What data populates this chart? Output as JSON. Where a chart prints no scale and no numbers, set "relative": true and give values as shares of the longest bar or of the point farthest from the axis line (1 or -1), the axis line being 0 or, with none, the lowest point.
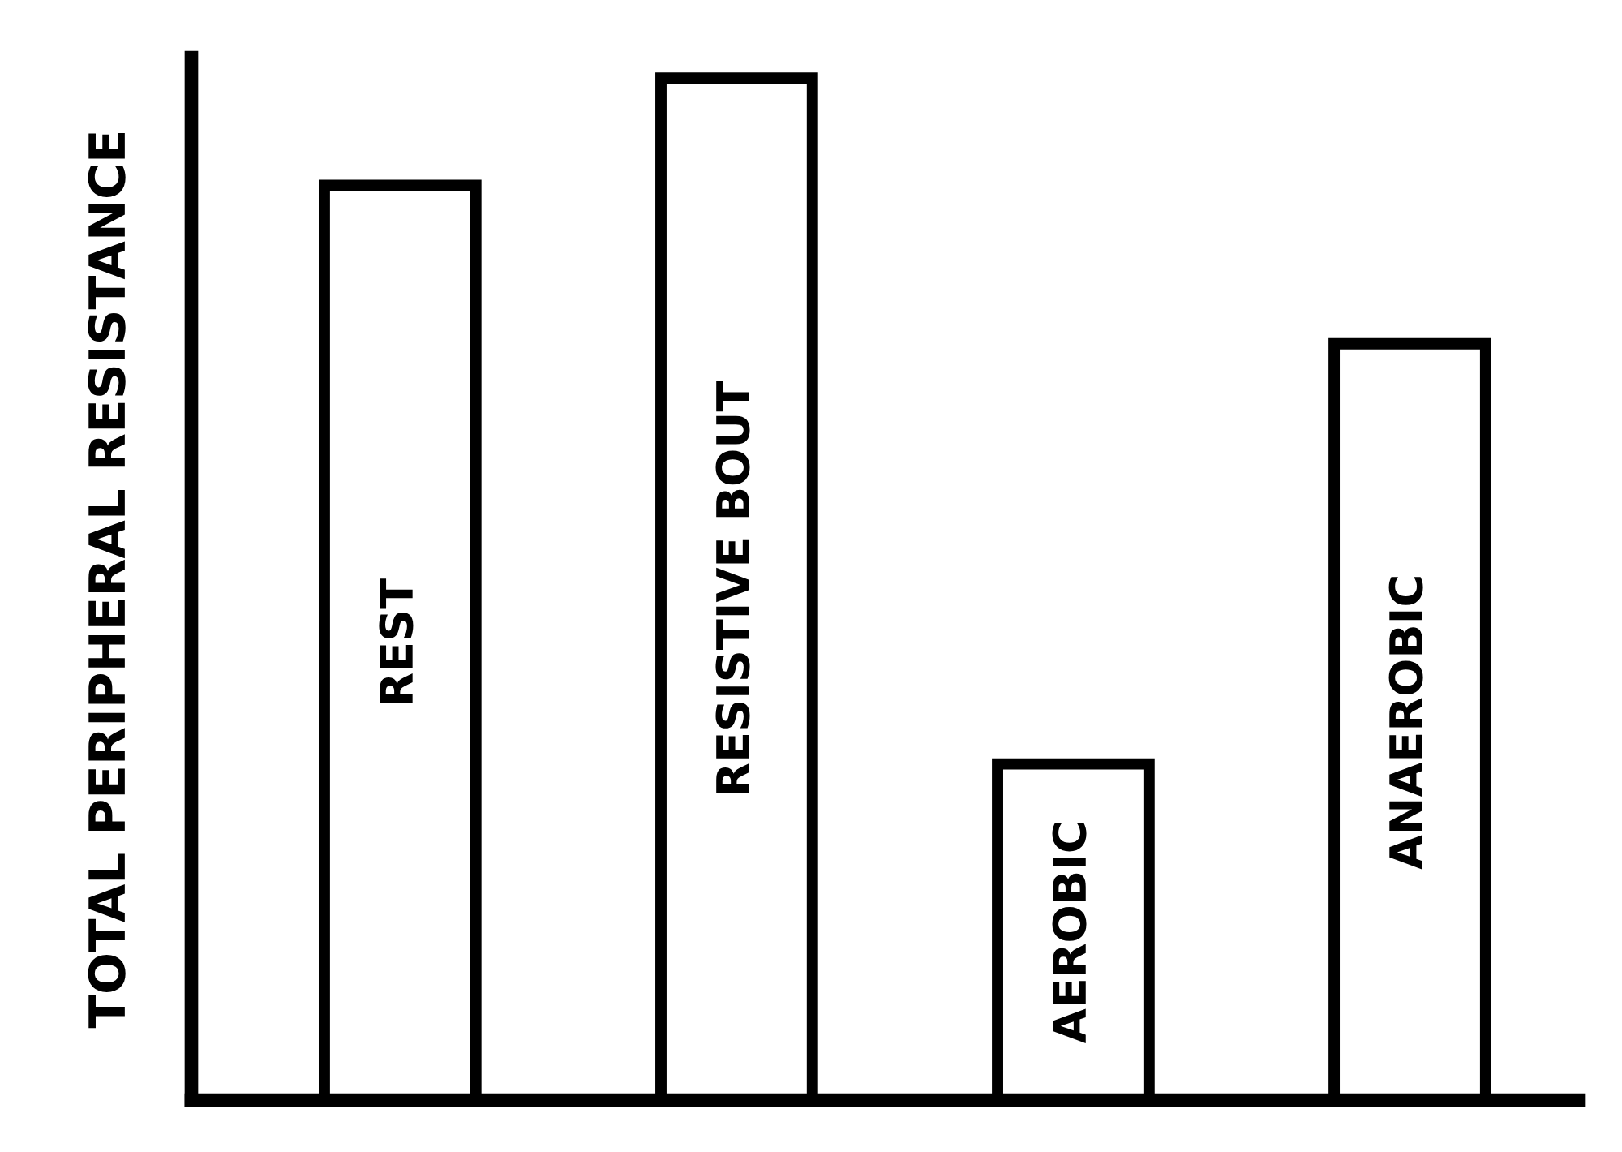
{
  "chart_data": {
    "type": "bar",
    "relative": true,
    "ylabel": "TOTAL PERIPHERAL RESISTANCE",
    "categories": [
      "REST",
      "RESISTIVE BOUT",
      "AEROBIC",
      "ANAEROBIC"
    ],
    "values": [
      0.895,
      1,
      0.329,
      0.74
    ],
    "color": "#ffffff"
  }
}
